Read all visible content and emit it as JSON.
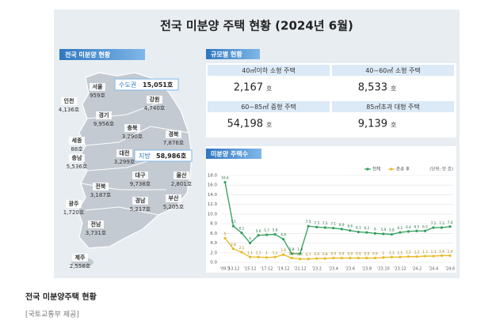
{
  "header": {
    "title": "전국 미분양 주택 현황  (2024년 6월)"
  },
  "map": {
    "title": "전국 미분양 현황",
    "capital": {
      "label": "수도권",
      "value": "15,051호"
    },
    "local": {
      "label": "지방",
      "value": "58,986호"
    },
    "regions": [
      {
        "name": "인천",
        "count": "4,136호"
      },
      {
        "name": "서울",
        "count": "959호"
      },
      {
        "name": "강원",
        "count": "4,740호"
      },
      {
        "name": "경기",
        "count": "9,956호"
      },
      {
        "name": "충북",
        "count": "3,290호"
      },
      {
        "name": "경북",
        "count": "7,876호"
      },
      {
        "name": "세종",
        "count": "88호"
      },
      {
        "name": "대전",
        "count": "3,299호"
      },
      {
        "name": "충남",
        "count": "5,536호"
      },
      {
        "name": "대구",
        "count": "9,738호"
      },
      {
        "name": "울산",
        "count": "2,801호"
      },
      {
        "name": "전북",
        "count": "3,187호"
      },
      {
        "name": "광주",
        "count": "1,720호"
      },
      {
        "name": "경남",
        "count": "5,217호"
      },
      {
        "name": "부산",
        "count": "5,205호"
      },
      {
        "name": "전남",
        "count": "3,731호"
      },
      {
        "name": "제주",
        "count": "2,558호"
      }
    ]
  },
  "size_table": {
    "title": "규모별 현황",
    "cells": [
      {
        "label": "40㎡이하 소형 주택",
        "value": "2,167",
        "unit": "호"
      },
      {
        "label": "40~60㎡ 소형 주택",
        "value": "8,533",
        "unit": "호"
      },
      {
        "label": "60~85㎡ 중형 주택",
        "value": "54,198",
        "unit": "호"
      },
      {
        "label": "85㎡초과 대형 주택",
        "value": "9,139",
        "unit": "호"
      }
    ]
  },
  "chart_data": {
    "type": "line",
    "title": "미분양 주택수",
    "unit_note": "(단위: 만 호)",
    "categories": [
      "'09.3",
      "'13.12",
      null,
      "'15.12",
      null,
      "'17.12",
      null,
      "'19.12",
      null,
      "'21.12",
      null,
      "'23.2",
      null,
      "'23.4",
      null,
      "'23.6",
      null,
      "'23.8",
      null,
      "'23.10",
      null,
      "'23.12",
      null,
      "'24.2",
      null,
      "'24.4",
      null,
      "'24.6"
    ],
    "series": [
      {
        "name": "전체",
        "color": "#2e9e5b",
        "values": [
          16.6,
          7.5,
          6.1,
          4.0,
          5.6,
          5.7,
          5.8,
          4.8,
          1.8,
          1.8,
          7.5,
          7.3,
          7.2,
          7.1,
          6.9,
          6.6,
          6.3,
          6.2,
          6.0,
          5.9,
          5.8,
          6.2,
          6.4,
          6.5,
          6.5,
          7.2,
          7.2,
          7.4
        ]
      },
      {
        "name": "준공 후",
        "color": "#e8b923",
        "values": [
          5.0,
          2.8,
          2.1,
          1.1,
          1.1,
          1.0,
          1.1,
          1.6,
          0.9,
          0.7,
          0.7,
          0.8,
          0.8,
          0.9,
          0.9,
          0.9,
          0.9,
          0.9,
          0.9,
          1.0,
          1.1,
          1.1,
          1.2,
          1.2,
          1.3,
          1.3,
          1.4,
          1.4
        ]
      }
    ],
    "ylim": [
      0,
      18
    ],
    "yticks": [
      {
        "value": 0,
        "label": "0.0"
      },
      {
        "value": 2,
        "label": "2.0"
      },
      {
        "value": 4,
        "label": "4.0"
      },
      {
        "value": 6,
        "label": "6.0"
      },
      {
        "value": 8,
        "label": "8.0"
      },
      {
        "value": 10,
        "label": "10.0"
      },
      {
        "value": 12,
        "label": "12.0"
      },
      {
        "value": 14,
        "label": "14.0"
      },
      {
        "value": 16,
        "label": "16.0"
      },
      {
        "value": 18,
        "label": "18.0"
      }
    ],
    "grid": true,
    "legend": "top-right"
  },
  "caption": {
    "title": "전국 미분양주택 현황",
    "source": "[국토교통부 제공]"
  }
}
